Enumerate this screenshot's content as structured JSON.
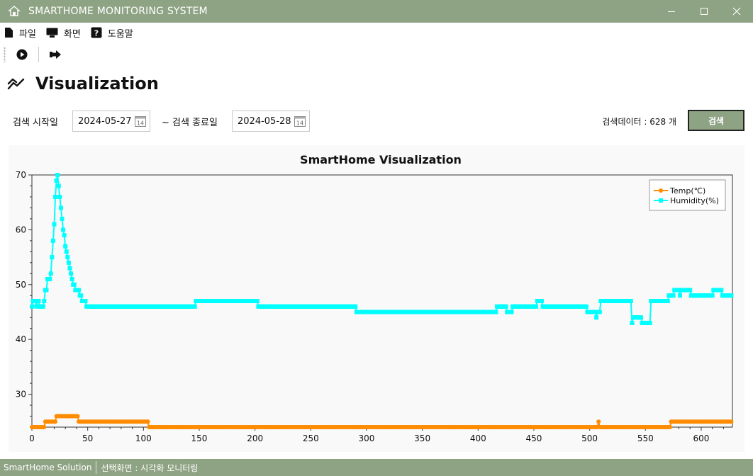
{
  "window": {
    "title": "SMARTHOME MONITORING SYSTEM",
    "app_icon": "home-icon",
    "controls": [
      "minimize-icon",
      "maximize-icon",
      "close-icon"
    ]
  },
  "menu": [
    {
      "label": "파일",
      "icon": "file-icon"
    },
    {
      "label": "화면",
      "icon": "monitor-icon"
    },
    {
      "label": "도움말",
      "icon": "help-icon"
    }
  ],
  "toolbar": {
    "buttons": [
      "play-circle-icon",
      "exit-icon"
    ]
  },
  "page": {
    "title": "Visualization",
    "icon": "chart-trend-icon"
  },
  "search": {
    "start_label": "검색 시작일",
    "start_date": "2024-05-27",
    "end_label": "~ 검색 종료일",
    "end_date": "2024-05-28",
    "count_text": "검색데이터 : 628 개",
    "button_label": "검색"
  },
  "status": {
    "app": "SmartHome Solution",
    "screen": "선택화면 : 시각화 모니터링"
  },
  "colors": {
    "accent": "#8ea384",
    "temp": "#ff8c00",
    "humidity": "#00ffff"
  },
  "chart_data": {
    "type": "line",
    "title": "SmartHome Visualization",
    "xlabel": "",
    "ylabel": "",
    "xlim": [
      0,
      628
    ],
    "ylim": [
      24,
      70
    ],
    "x_ticks": [
      0,
      50,
      100,
      150,
      200,
      250,
      300,
      350,
      400,
      450,
      500,
      550,
      600
    ],
    "y_ticks": [
      30,
      40,
      50,
      60,
      70
    ],
    "grid": false,
    "legend": "top-right",
    "series": [
      {
        "name": "Temp(℃)",
        "points": [
          [
            0,
            24
          ],
          [
            11,
            24
          ],
          [
            12,
            25
          ],
          [
            21,
            25
          ],
          [
            22,
            26
          ],
          [
            41,
            26
          ],
          [
            42,
            25
          ],
          [
            104,
            25
          ],
          [
            105,
            24
          ],
          [
            507,
            24
          ],
          [
            508,
            25
          ],
          [
            509,
            24
          ],
          [
            572,
            24
          ],
          [
            573,
            25
          ],
          [
            627,
            25
          ]
        ]
      },
      {
        "name": "Humidity(%)",
        "points": [
          [
            0,
            46
          ],
          [
            1,
            47
          ],
          [
            4,
            46
          ],
          [
            5,
            47
          ],
          [
            7,
            46
          ],
          [
            10,
            46
          ],
          [
            11,
            47
          ],
          [
            12,
            49
          ],
          [
            14,
            51
          ],
          [
            16,
            51
          ],
          [
            17,
            52
          ],
          [
            18,
            55
          ],
          [
            19,
            58
          ],
          [
            20,
            61
          ],
          [
            21,
            66
          ],
          [
            22,
            69
          ],
          [
            23,
            70
          ],
          [
            24,
            68
          ],
          [
            25,
            66
          ],
          [
            26,
            64
          ],
          [
            27,
            62
          ],
          [
            28,
            60
          ],
          [
            29,
            59
          ],
          [
            30,
            57
          ],
          [
            31,
            56
          ],
          [
            32,
            55
          ],
          [
            33,
            54
          ],
          [
            34,
            53
          ],
          [
            35,
            52
          ],
          [
            36,
            51
          ],
          [
            37,
            50
          ],
          [
            38,
            50
          ],
          [
            39,
            49
          ],
          [
            42,
            49
          ],
          [
            43,
            48
          ],
          [
            45,
            47
          ],
          [
            48,
            47
          ],
          [
            49,
            46
          ],
          [
            146,
            46
          ],
          [
            147,
            47
          ],
          [
            202,
            47
          ],
          [
            203,
            46
          ],
          [
            290,
            46
          ],
          [
            291,
            45
          ],
          [
            416,
            45
          ],
          [
            417,
            46
          ],
          [
            425,
            46
          ],
          [
            426,
            45
          ],
          [
            430,
            45
          ],
          [
            431,
            46
          ],
          [
            452,
            46
          ],
          [
            453,
            47
          ],
          [
            457,
            47
          ],
          [
            458,
            46
          ],
          [
            497,
            46
          ],
          [
            498,
            45
          ],
          [
            505,
            45
          ],
          [
            506,
            44
          ],
          [
            507,
            45
          ],
          [
            509,
            45
          ],
          [
            510,
            47
          ],
          [
            537,
            47
          ],
          [
            538,
            43
          ],
          [
            539,
            44
          ],
          [
            546,
            44
          ],
          [
            547,
            43
          ],
          [
            554,
            43
          ],
          [
            555,
            47
          ],
          [
            570,
            47
          ],
          [
            571,
            48
          ],
          [
            575,
            48
          ],
          [
            576,
            49
          ],
          [
            580,
            49
          ],
          [
            581,
            48
          ],
          [
            582,
            49
          ],
          [
            590,
            49
          ],
          [
            591,
            48
          ],
          [
            610,
            48
          ],
          [
            611,
            49
          ],
          [
            618,
            49
          ],
          [
            619,
            48
          ],
          [
            627,
            48
          ]
        ]
      }
    ]
  }
}
